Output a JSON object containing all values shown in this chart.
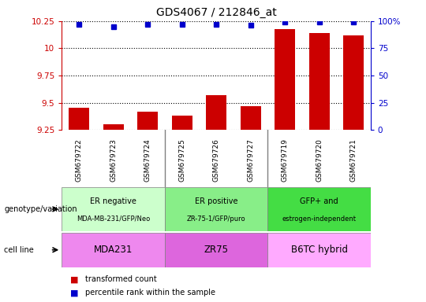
{
  "title": "GDS4067 / 212846_at",
  "samples": [
    "GSM679722",
    "GSM679723",
    "GSM679724",
    "GSM679725",
    "GSM679726",
    "GSM679727",
    "GSM679719",
    "GSM679720",
    "GSM679721"
  ],
  "transformed_counts": [
    9.45,
    9.3,
    9.42,
    9.38,
    9.57,
    9.47,
    10.18,
    10.14,
    10.12
  ],
  "percentile_ranks": [
    97,
    95,
    97,
    97,
    97,
    96,
    99,
    99,
    99
  ],
  "ylim_left": [
    9.25,
    10.25
  ],
  "ylim_right": [
    0,
    100
  ],
  "yticks_left": [
    9.25,
    9.5,
    9.75,
    10.0,
    10.25
  ],
  "yticks_right": [
    0,
    25,
    50,
    75,
    100
  ],
  "ytick_labels_left": [
    "9.25",
    "9.5",
    "9.75",
    "10",
    "10.25"
  ],
  "ytick_labels_right": [
    "0",
    "25",
    "50",
    "75",
    "100%"
  ],
  "groups": [
    {
      "label_top": "ER negative",
      "label_bot": "MDA-MB-231/GFP/Neo",
      "start": 0,
      "end": 3,
      "color": "#ccffcc"
    },
    {
      "label_top": "ER positive",
      "label_bot": "ZR-75-1/GFP/puro",
      "start": 3,
      "end": 6,
      "color": "#88ee88"
    },
    {
      "label_top": "GFP+ and",
      "label_bot": "estrogen-independent",
      "start": 6,
      "end": 9,
      "color": "#44dd44"
    }
  ],
  "cell_lines": [
    {
      "label": "MDA231",
      "start": 0,
      "end": 3,
      "color": "#ee88ee"
    },
    {
      "label": "ZR75",
      "start": 3,
      "end": 6,
      "color": "#dd66dd"
    },
    {
      "label": "B6TC hybrid",
      "start": 6,
      "end": 9,
      "color": "#ffaaff"
    }
  ],
  "bar_color": "#cc0000",
  "dot_color": "#0000cc",
  "left_axis_color": "#cc0000",
  "right_axis_color": "#0000cc",
  "xtick_bg_color": "#cccccc",
  "legend_bar_label": "transformed count",
  "legend_dot_label": "percentile rank within the sample",
  "genotype_label": "genotype/variation",
  "cell_line_label": "cell line"
}
